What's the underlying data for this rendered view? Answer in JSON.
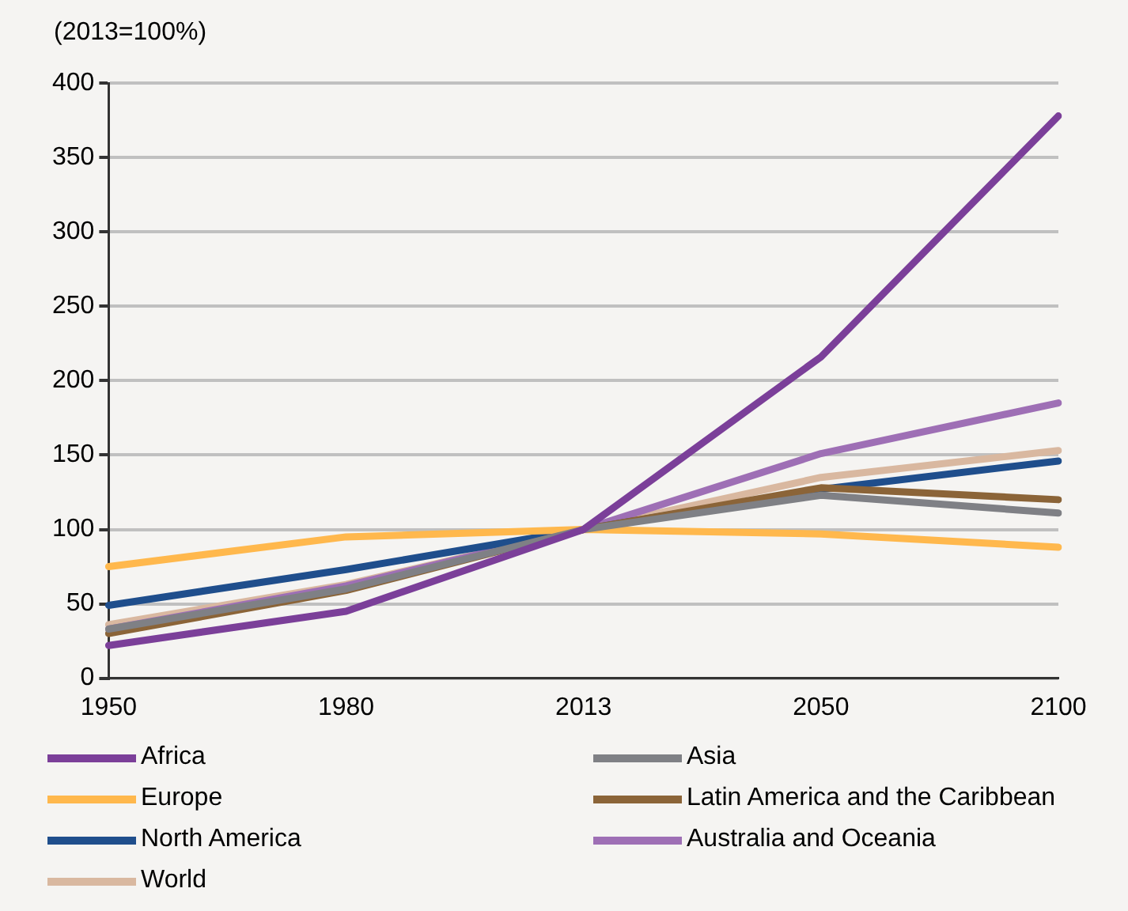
{
  "chart_data": {
    "type": "line",
    "ylabel": "(2013=100%)",
    "categories": [
      "1950",
      "1980",
      "2013",
      "2050",
      "2100"
    ],
    "series": [
      {
        "name": "Africa",
        "color": "#7b3f99",
        "values": [
          22,
          45,
          100,
          216,
          378
        ]
      },
      {
        "name": "Asia",
        "color": "#7f8085",
        "values": [
          33,
          60,
          100,
          123,
          111
        ]
      },
      {
        "name": "Europe",
        "color": "#ffb84d",
        "values": [
          75,
          95,
          100,
          97,
          88
        ]
      },
      {
        "name": "Latin America and the Caribbean",
        "color": "#8b6438",
        "values": [
          30,
          59,
          100,
          128,
          120
        ]
      },
      {
        "name": "North America",
        "color": "#1f4e8c",
        "values": [
          49,
          73,
          100,
          127,
          146
        ]
      },
      {
        "name": "Australia and Oceania",
        "color": "#9e6fb5",
        "values": [
          33,
          62,
          100,
          151,
          185
        ]
      },
      {
        "name": "World",
        "color": "#d9b8a0",
        "values": [
          36,
          63,
          100,
          135,
          153
        ]
      }
    ],
    "ylim": [
      0,
      400
    ],
    "yticks": [
      0,
      50,
      100,
      150,
      200,
      250,
      300,
      350,
      400
    ],
    "grid": "y",
    "legend": "bottom",
    "marker": "none",
    "line_style": "solid"
  }
}
